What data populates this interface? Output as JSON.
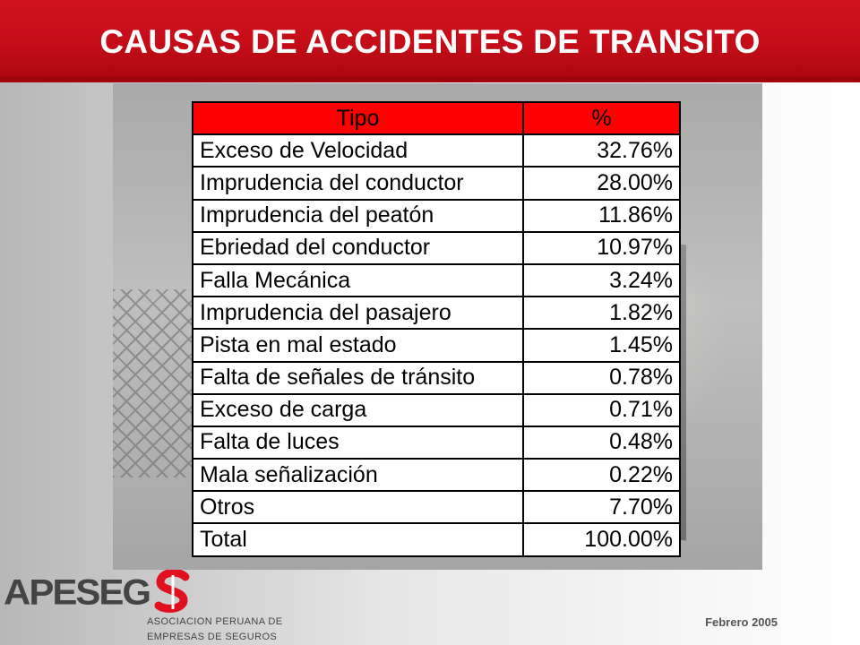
{
  "header": {
    "title": "CAUSAS DE ACCIDENTES DE TRANSITO",
    "color": "#c8101c"
  },
  "table": {
    "columns": [
      "Tipo",
      "%"
    ],
    "header_color": "#ff0000",
    "rows": [
      {
        "tipo": "Exceso de Velocidad",
        "pct": "32.76%"
      },
      {
        "tipo": "Imprudencia del conductor",
        "pct": "28.00%"
      },
      {
        "tipo": "Imprudencia del peatón",
        "pct": "11.86%"
      },
      {
        "tipo": "Ebriedad del conductor",
        "pct": "10.97%"
      },
      {
        "tipo": "Falla Mecánica",
        "pct": "3.24%"
      },
      {
        "tipo": "Imprudencia del pasajero",
        "pct": "1.82%"
      },
      {
        "tipo": "Pista en mal estado",
        "pct": "1.45%"
      },
      {
        "tipo": "Falta de señales de tránsito",
        "pct": "0.78%"
      },
      {
        "tipo": "Exceso de carga",
        "pct": "0.71%"
      },
      {
        "tipo": "Falta de luces",
        "pct": "0.48%"
      },
      {
        "tipo": "Mala señalización",
        "pct": "0.22%"
      },
      {
        "tipo": "Otros",
        "pct": "7.70%"
      },
      {
        "tipo": "Total",
        "pct": "100.00%"
      }
    ]
  },
  "footer": {
    "logo_text": "APESEG",
    "org_line1": "ASOCIACION PERUANA DE",
    "org_line2": "EMPRESAS DE SEGUROS",
    "date": "Febrero 2005"
  }
}
